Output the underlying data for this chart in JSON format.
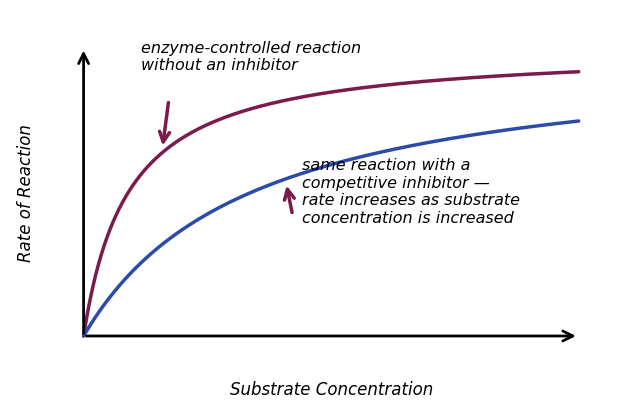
{
  "background_color": "#ffffff",
  "curve1_color": "#7B1A4B",
  "curve2_color": "#2B4BAA",
  "axis_color": "#000000",
  "arrow_color": "#7B1A4B",
  "ylabel": "Rate of Reaction",
  "xlabel": "Substrate Concentration",
  "label1": "enzyme-controlled reaction\nwithout an inhibitor",
  "label2": "same reaction with a\ncompetitive inhibitor —\nrate increases as substrate\nconcentration is increased",
  "label1_fontsize": 11.5,
  "label2_fontsize": 11.5,
  "curve1_km": 2.0,
  "curve1_vmax": 1.0,
  "curve2_km": 7.5,
  "curve2_vmax": 1.0,
  "x_max": 22
}
